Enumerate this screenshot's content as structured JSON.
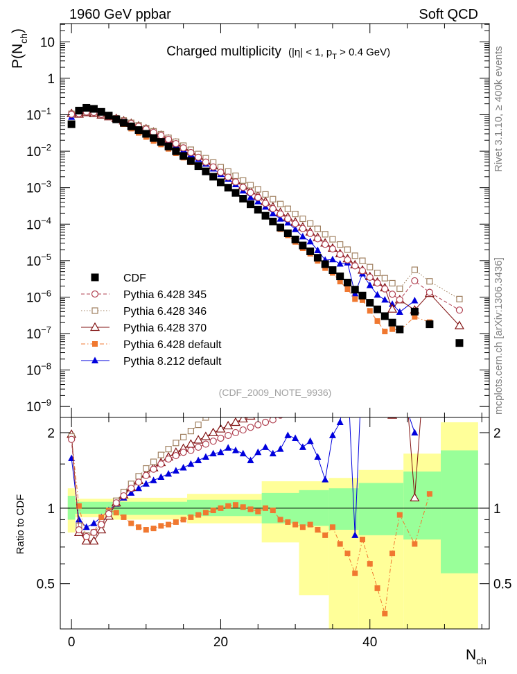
{
  "header": {
    "left": "1960 GeV ppbar",
    "right": "Soft QCD"
  },
  "side_labels": {
    "rivet": "Rivet 3.1.10, ≥ 400k events",
    "mcplots": "mcplots.cern.ch [arXiv:1306.3436]"
  },
  "chart_data": {
    "type": "scatter",
    "title": "Charged multiplicity",
    "title_sub": "(|η| < 1, p",
    "title_sub_index": "T",
    "title_sub_tail": " > 0.4 GeV)",
    "watermark": "(CDF_2009_NOTE_9936)",
    "xlabel": "N",
    "xlabel_sub": "ch",
    "ylabel": "P(N",
    "ylabel_sub": "ch",
    "ylabel_tail": ")",
    "ratio_ylabel": "Ratio to CDF",
    "xlim": [
      -1.5,
      56
    ],
    "ylim_log10": [
      -9.3,
      1.5
    ],
    "ratio_ylim": [
      0.33,
      2.3
    ],
    "x_ticks": [
      0,
      20,
      40
    ],
    "y_ticks": [
      {
        "exp": 1,
        "label": "10"
      },
      {
        "exp": 0,
        "label": "1"
      },
      {
        "exp": -1,
        "label": "10",
        "sup": "−1"
      },
      {
        "exp": -2,
        "label": "10",
        "sup": "−2"
      },
      {
        "exp": -3,
        "label": "10",
        "sup": "−3"
      },
      {
        "exp": -4,
        "label": "10",
        "sup": "−4"
      },
      {
        "exp": -5,
        "label": "10",
        "sup": "−5"
      },
      {
        "exp": -6,
        "label": "10",
        "sup": "−6"
      },
      {
        "exp": -7,
        "label": "10",
        "sup": "−7"
      },
      {
        "exp": -8,
        "label": "10",
        "sup": "−8"
      },
      {
        "exp": -9,
        "label": "10",
        "sup": "−9"
      }
    ],
    "ratio_ticks": [
      {
        "v": 0.5,
        "label": "0.5"
      },
      {
        "v": 1,
        "label": "1"
      },
      {
        "v": 2,
        "label": "2"
      }
    ],
    "uncertainty_bands": {
      "inner_color": "#99ff99",
      "outer_color": "#ffff99",
      "bins": [
        {
          "x": [
            -0.5,
            0.5
          ],
          "inner": [
            0.9,
            1.12
          ],
          "outer": [
            0.8,
            1.2
          ]
        },
        {
          "x": [
            0.5,
            5.5
          ],
          "inner": [
            0.95,
            1.06
          ],
          "outer": [
            0.92,
            1.09
          ]
        },
        {
          "x": [
            5.5,
            15.5
          ],
          "inner": [
            0.94,
            1.06
          ],
          "outer": [
            0.9,
            1.1
          ]
        },
        {
          "x": [
            15.5,
            25.5
          ],
          "inner": [
            0.93,
            1.08
          ],
          "outer": [
            0.87,
            1.14
          ]
        },
        {
          "x": [
            25.5,
            30.5
          ],
          "inner": [
            0.87,
            1.15
          ],
          "outer": [
            0.73,
            1.28
          ]
        },
        {
          "x": [
            30.5,
            34.5
          ],
          "inner": [
            0.85,
            1.18
          ],
          "outer": [
            0.45,
            1.28
          ]
        },
        {
          "x": [
            34.5,
            38.5
          ],
          "inner": [
            0.82,
            1.2
          ],
          "outer": [
            0.33,
            1.32
          ]
        },
        {
          "x": [
            38.5,
            44.5
          ],
          "inner": [
            0.78,
            1.26
          ],
          "outer": [
            0.33,
            1.42
          ]
        },
        {
          "x": [
            44.5,
            49.5
          ],
          "inner": [
            0.75,
            1.4
          ],
          "outer": [
            0.33,
            1.65
          ]
        },
        {
          "x": [
            49.5,
            54.5
          ],
          "inner": [
            0.55,
            1.7
          ],
          "outer": [
            0.33,
            2.2
          ]
        }
      ]
    },
    "series": [
      {
        "name": "CDF",
        "color": "#000000",
        "marker": "filled-square",
        "line": "none",
        "x": [
          0,
          1,
          2,
          3,
          4,
          5,
          6,
          7,
          8,
          9,
          10,
          11,
          12,
          13,
          14,
          15,
          16,
          17,
          18,
          19,
          20,
          21,
          22,
          23,
          24,
          25,
          26,
          27,
          28,
          29,
          30,
          31,
          32,
          33,
          34,
          35,
          36,
          37,
          38,
          39,
          40,
          41,
          42,
          43,
          44,
          46,
          48,
          52
        ],
        "y": [
          0.055,
          0.13,
          0.155,
          0.145,
          0.12,
          0.095,
          0.075,
          0.06,
          0.048,
          0.038,
          0.03,
          0.023,
          0.018,
          0.0135,
          0.01,
          0.0074,
          0.0054,
          0.0039,
          0.0028,
          0.002,
          0.0014,
          0.001,
          0.00072,
          0.0005,
          0.00035,
          0.00025,
          0.00017,
          0.000118,
          8.1e-05,
          5.6e-05,
          3.8e-05,
          2.6e-05,
          1.8e-05,
          1.2e-05,
          8e-06,
          5.5e-06,
          3.7e-06,
          2.5e-06,
          1.6e-06,
          1.1e-06,
          7e-07,
          4.6e-07,
          3e-07,
          2e-07,
          1.3e-07,
          4e-07,
          1.8e-07,
          5.5e-08
        ]
      },
      {
        "name": "Pythia 6.428 345",
        "color": "#b04050",
        "marker": "open-circle",
        "line": "dash",
        "x": [
          0,
          1,
          2,
          3,
          4,
          5,
          6,
          7,
          8,
          9,
          10,
          11,
          12,
          13,
          14,
          15,
          16,
          17,
          18,
          19,
          20,
          21,
          22,
          23,
          24,
          25,
          26,
          27,
          28,
          29,
          30,
          31,
          32,
          33,
          34,
          35,
          36,
          37,
          38,
          39,
          40,
          41,
          42,
          43,
          44,
          46,
          48,
          52
        ],
        "r": [
          1.88,
          0.82,
          0.77,
          0.8,
          0.86,
          0.95,
          1.05,
          1.12,
          1.2,
          1.27,
          1.35,
          1.43,
          1.5,
          1.57,
          1.62,
          1.67,
          1.7,
          1.75,
          1.8,
          1.85,
          1.9,
          1.95,
          2.0,
          2.05,
          2.1,
          2.15,
          2.2,
          2.25,
          2.35,
          2.5,
          2.7,
          2.9,
          3.1,
          3.3,
          3.5,
          3.8,
          4.0,
          4.2,
          4.5,
          4.8,
          5.0,
          5.3,
          5.6,
          6.0,
          6.5,
          7.0,
          7.5,
          8.0
        ]
      },
      {
        "name": "Pythia 6.428 346",
        "color": "#a08060",
        "marker": "open-square",
        "line": "dot",
        "x": [
          0,
          1,
          2,
          3,
          4,
          5,
          6,
          7,
          8,
          9,
          10,
          11,
          12,
          13,
          14,
          15,
          16,
          17,
          18,
          19,
          20,
          21,
          22,
          23,
          24,
          25,
          26,
          27,
          28,
          29,
          30,
          31,
          32,
          33,
          34,
          35,
          36,
          37,
          38,
          39,
          40,
          41,
          42,
          43,
          44,
          46,
          48,
          52
        ],
        "r": [
          1.93,
          0.85,
          0.78,
          0.8,
          0.86,
          0.96,
          1.07,
          1.16,
          1.25,
          1.34,
          1.44,
          1.53,
          1.63,
          1.72,
          1.82,
          1.92,
          2.03,
          2.15,
          2.3,
          2.45,
          2.6,
          2.78,
          2.95,
          3.15,
          3.35,
          3.6,
          3.85,
          4.1,
          4.4,
          4.7,
          5.0,
          5.4,
          5.8,
          6.2,
          6.6,
          7.0,
          7.5,
          8.0,
          8.5,
          9.0,
          9.5,
          10.0,
          11.0,
          12.0,
          13.0,
          14.0,
          15.0,
          16.0
        ]
      },
      {
        "name": "Pythia 6.428 370",
        "color": "#801010",
        "marker": "open-triangle",
        "line": "solid",
        "x": [
          0,
          1,
          2,
          3,
          4,
          5,
          6,
          7,
          8,
          9,
          10,
          11,
          12,
          13,
          14,
          15,
          16,
          17,
          18,
          19,
          20,
          21,
          22,
          23,
          24,
          25,
          26,
          27,
          28,
          29,
          30,
          31,
          32,
          33,
          34,
          35,
          36,
          37,
          38,
          39,
          40,
          41,
          42,
          43,
          44,
          46,
          48,
          52
        ],
        "r": [
          1.97,
          0.8,
          0.74,
          0.74,
          0.82,
          0.93,
          1.05,
          1.13,
          1.21,
          1.29,
          1.37,
          1.45,
          1.52,
          1.6,
          1.67,
          1.73,
          1.8,
          1.87,
          1.93,
          2.0,
          2.07,
          2.13,
          2.2,
          2.27,
          2.33,
          2.4,
          2.45,
          2.5,
          2.6,
          2.8,
          3.0,
          3.2,
          3.4,
          3.6,
          3.8,
          4.0,
          4.2,
          4.5,
          4.8,
          5.0,
          5.2,
          5.6,
          6.0,
          2.35,
          6.5,
          1.1,
          7.0,
          3.0
        ]
      },
      {
        "name": "Pythia 6.428 default",
        "color": "#f07830",
        "marker": "filled-square-small",
        "line": "dashdot",
        "x": [
          0,
          1,
          2,
          3,
          4,
          5,
          6,
          7,
          8,
          9,
          10,
          11,
          12,
          13,
          14,
          15,
          16,
          17,
          18,
          19,
          20,
          21,
          22,
          23,
          24,
          25,
          26,
          27,
          28,
          29,
          30,
          31,
          32,
          33,
          34,
          35,
          36,
          37,
          38,
          39,
          40,
          41,
          42,
          43,
          44,
          46,
          48
        ],
        "r": [
          1.9,
          1.02,
          0.76,
          0.8,
          0.92,
          0.98,
          0.96,
          0.92,
          0.87,
          0.84,
          0.82,
          0.83,
          0.85,
          0.86,
          0.88,
          0.9,
          0.92,
          0.94,
          0.96,
          0.98,
          1.0,
          1.02,
          1.03,
          1.01,
          0.99,
          0.97,
          1.0,
          0.98,
          0.9,
          0.88,
          0.86,
          0.84,
          0.86,
          0.82,
          0.78,
          0.84,
          0.72,
          0.66,
          0.55,
          0.75,
          0.6,
          0.48,
          0.38,
          0.66,
          0.94,
          0.72,
          1.14
        ]
      },
      {
        "name": "Pythia 8.212 default",
        "color": "#0000dd",
        "marker": "filled-triangle",
        "line": "solid",
        "x": [
          0,
          1,
          2,
          3,
          4,
          5,
          6,
          7,
          8,
          9,
          10,
          11,
          12,
          13,
          14,
          15,
          16,
          17,
          18,
          19,
          20,
          21,
          22,
          23,
          24,
          25,
          26,
          27,
          28,
          29,
          30,
          31,
          32,
          33,
          34,
          35,
          36,
          37,
          38,
          39,
          40,
          41,
          42,
          43,
          44,
          46
        ],
        "r": [
          1.58,
          0.9,
          0.84,
          0.87,
          0.92,
          0.98,
          1.04,
          1.1,
          1.15,
          1.2,
          1.25,
          1.29,
          1.33,
          1.37,
          1.41,
          1.45,
          1.5,
          1.55,
          1.6,
          1.65,
          1.67,
          1.74,
          1.7,
          1.65,
          1.55,
          1.67,
          1.75,
          1.65,
          1.72,
          1.95,
          1.9,
          1.75,
          1.85,
          1.6,
          1.3,
          1.95,
          2.2,
          3.5,
          0.78,
          4.0,
          3.0,
          2.5,
          2.8,
          3.2,
          3.0,
          2.0
        ]
      }
    ]
  }
}
